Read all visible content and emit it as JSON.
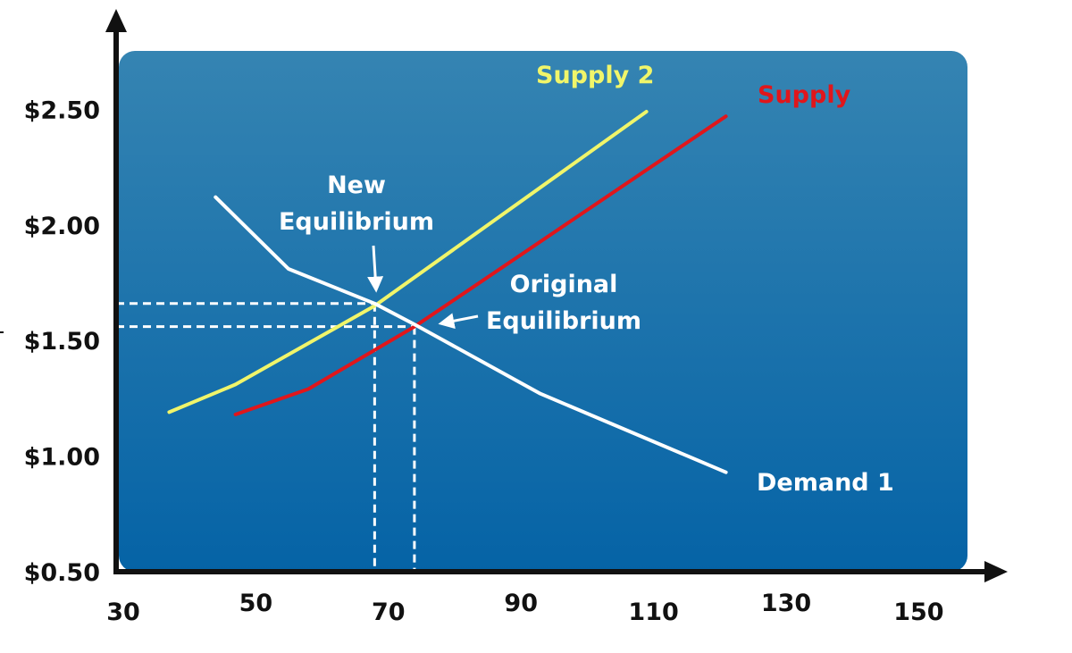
{
  "chart_data": {
    "type": "line",
    "title": "",
    "xlabel": "",
    "ylabel": "",
    "xlim": [
      30,
      150
    ],
    "ylim": [
      0.5,
      2.75
    ],
    "x_ticks": [
      30,
      50,
      70,
      90,
      110,
      130,
      150
    ],
    "x_tick_labels": [
      "30",
      "50",
      "70",
      "90",
      "110",
      "130",
      "150"
    ],
    "y_ticks": [
      0.5,
      1.0,
      1.5,
      2.0,
      2.5
    ],
    "y_tick_labels": [
      "$0.50",
      "$1.00",
      "$1.50",
      "$2.00",
      "$2.50"
    ],
    "grid": false,
    "series": [
      {
        "name": "Supply 2",
        "color": "#f0f56a",
        "points": [
          [
            38,
            1.19
          ],
          [
            48,
            1.31
          ],
          [
            69,
            1.65
          ],
          [
            110,
            2.49
          ]
        ]
      },
      {
        "name": "Supply",
        "color": "#e0161b",
        "points": [
          [
            48,
            1.18
          ],
          [
            59,
            1.29
          ],
          [
            75,
            1.56
          ],
          [
            122,
            2.47
          ]
        ]
      },
      {
        "name": "Demand 1",
        "color": "#ffffff",
        "points": [
          [
            45,
            2.12
          ],
          [
            56,
            1.81
          ],
          [
            69,
            1.66
          ],
          [
            75,
            1.57
          ],
          [
            94,
            1.27
          ],
          [
            122,
            0.93
          ]
        ]
      }
    ],
    "series_label_colors": {
      "Supply 2": "#f0f56a",
      "Supply": "#e0161b",
      "Demand 1": "#ffffff"
    },
    "equilibria": [
      {
        "label_lines": [
          "New",
          "Equilibrium"
        ],
        "x": 69,
        "y": 1.66
      },
      {
        "label_lines": [
          "Original",
          "Equilibrium"
        ],
        "x": 75,
        "y": 1.56
      }
    ],
    "background": {
      "top_color": "#3584b2",
      "bottom_color": "#0563a6"
    }
  }
}
